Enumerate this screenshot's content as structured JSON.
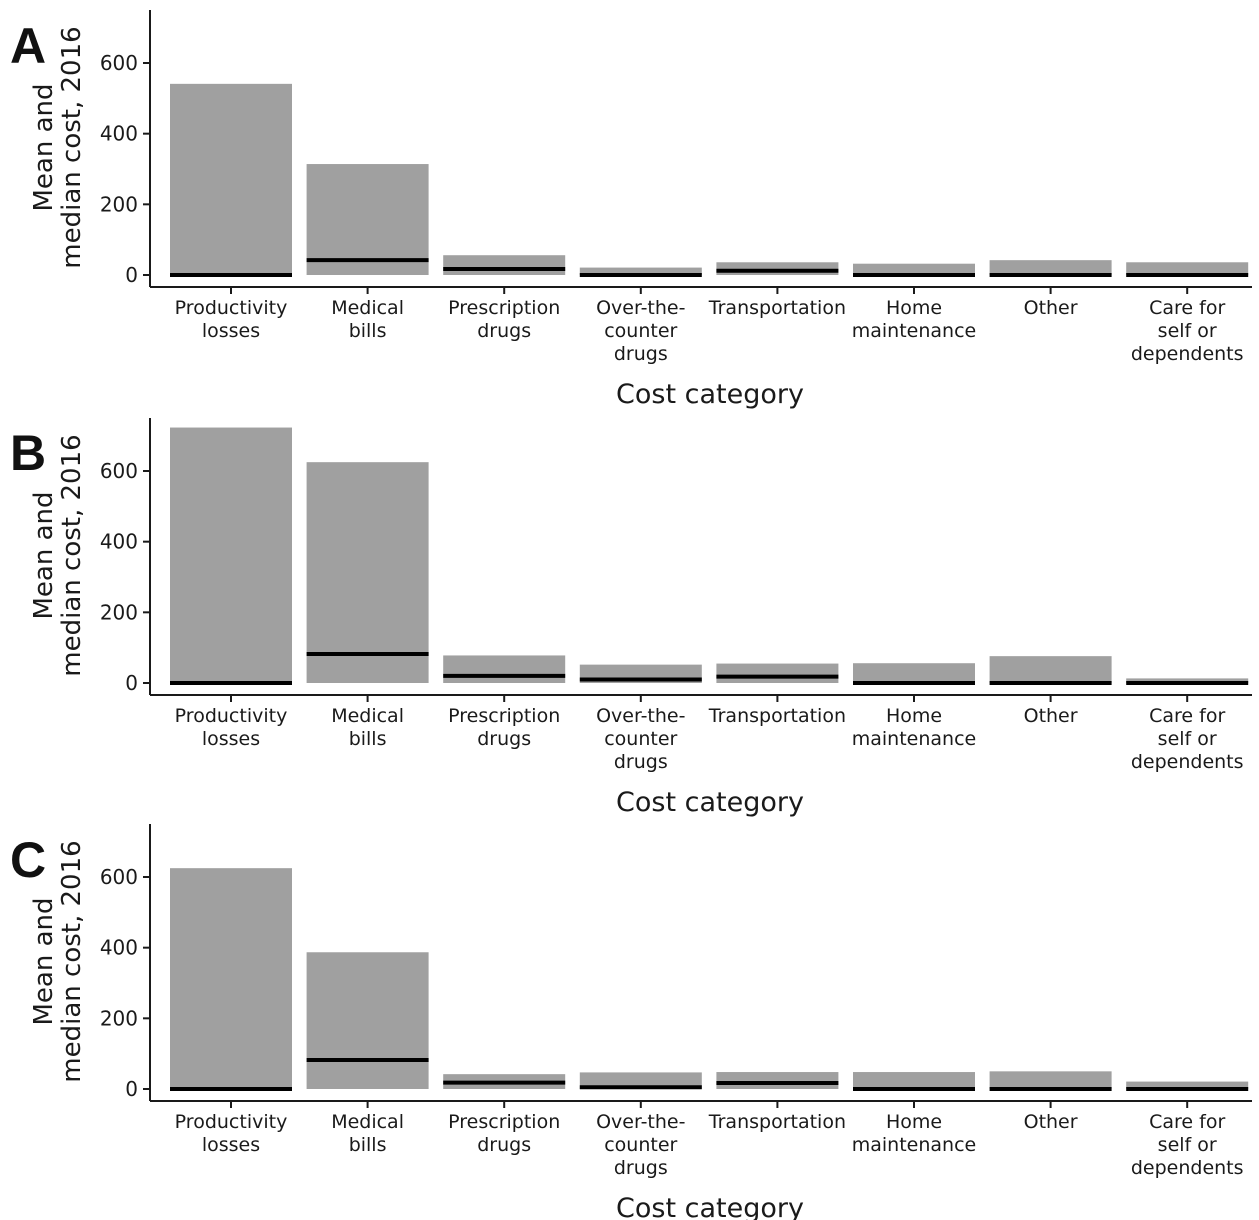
{
  "chart_data": [
    {
      "type": "bar",
      "panel_label": "A",
      "categories": [
        [
          "Productivity",
          "losses"
        ],
        [
          "Medical",
          "bills"
        ],
        [
          "Prescription",
          "drugs"
        ],
        [
          "Over-the-",
          "counter",
          "drugs"
        ],
        [
          "Transportation"
        ],
        [
          "Home",
          "maintenance"
        ],
        [
          "Other"
        ],
        [
          "Care for",
          "self or",
          "dependents"
        ]
      ],
      "series": [
        {
          "name": "Mean",
          "values": [
            541,
            314,
            56,
            21,
            36,
            32,
            42,
            36
          ]
        },
        {
          "name": "Median",
          "values": [
            0,
            42,
            17,
            0,
            12,
            0,
            0,
            0
          ]
        }
      ],
      "xlabel": "Cost category",
      "ylabel": [
        "Mean and",
        "median cost, 2016"
      ],
      "ylim": [
        0,
        750
      ],
      "yticks": [
        0,
        200,
        400,
        600
      ]
    },
    {
      "type": "bar",
      "panel_label": "B",
      "categories": [
        [
          "Productivity",
          "losses"
        ],
        [
          "Medical",
          "bills"
        ],
        [
          "Prescription",
          "drugs"
        ],
        [
          "Over-the-",
          "counter",
          "drugs"
        ],
        [
          "Transportation"
        ],
        [
          "Home",
          "maintenance"
        ],
        [
          "Other"
        ],
        [
          "Care for",
          "self or",
          "dependents"
        ]
      ],
      "series": [
        {
          "name": "Mean",
          "values": [
            723,
            625,
            78,
            52,
            55,
            56,
            76,
            13
          ]
        },
        {
          "name": "Median",
          "values": [
            0,
            82,
            20,
            10,
            18,
            0,
            0,
            0
          ]
        }
      ],
      "xlabel": "Cost category",
      "ylabel": [
        "Mean and",
        "median cost, 2016"
      ],
      "ylim": [
        0,
        750
      ],
      "yticks": [
        0,
        200,
        400,
        600
      ]
    },
    {
      "type": "bar",
      "panel_label": "C",
      "categories": [
        [
          "Productivity",
          "losses"
        ],
        [
          "Medical",
          "bills"
        ],
        [
          "Prescription",
          "drugs"
        ],
        [
          "Over-the-",
          "counter",
          "drugs"
        ],
        [
          "Transportation"
        ],
        [
          "Home",
          "maintenance"
        ],
        [
          "Other"
        ],
        [
          "Care for",
          "self or",
          "dependents"
        ]
      ],
      "series": [
        {
          "name": "Mean",
          "values": [
            625,
            387,
            42,
            47,
            48,
            48,
            50,
            21
          ]
        },
        {
          "name": "Median",
          "values": [
            0,
            82,
            18,
            5,
            17,
            0,
            0,
            0
          ]
        }
      ],
      "xlabel": "Cost category",
      "ylabel": [
        "Mean and",
        "median cost, 2016"
      ],
      "ylim": [
        0,
        750
      ],
      "yticks": [
        0,
        200,
        400,
        600
      ]
    }
  ],
  "colors": {
    "bar_fill": "#a0a0a0",
    "median_line": "#000000",
    "axis": "#1a1a1a"
  }
}
